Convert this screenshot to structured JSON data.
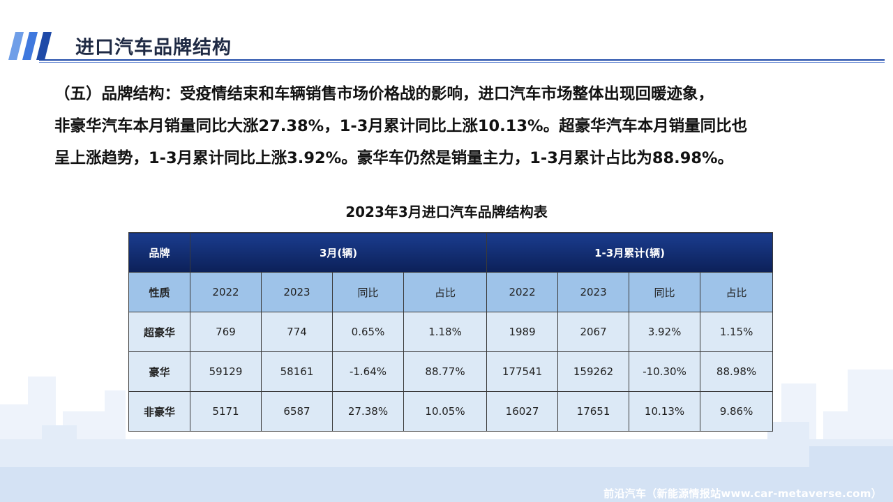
{
  "header": {
    "title": "进口汽车品牌结构"
  },
  "intro": {
    "line1": "（五）品牌结构：受疫情结束和车辆销售市场价格战的影响，进口汽车市场整体出现回暖迹象，",
    "line2": "非豪华汽车本月销量同比大涨27.38%，1-3月累计同比上涨10.13%。超豪华汽车本月销量同比也",
    "line3": "呈上涨趋势，1-3月累计同比上涨3.92%。豪华车仍然是销量主力，1-3月累计占比为88.98%。"
  },
  "table": {
    "title": "2023年3月进口汽车品牌结构表",
    "header_row1": {
      "brand": "品牌",
      "group_month": "3月(辆)",
      "group_ytd": "1-3月累计(辆)"
    },
    "header_row2": {
      "nature": "性质",
      "cols": [
        "2022",
        "2023",
        "同比",
        "占比",
        "2022",
        "2023",
        "同比",
        "占比"
      ]
    },
    "rows": [
      {
        "category": "超豪华",
        "cells": [
          "769",
          "774",
          "0.65%",
          "1.18%",
          "1989",
          "2067",
          "3.92%",
          "1.15%"
        ]
      },
      {
        "category": "豪华",
        "cells": [
          "59129",
          "58161",
          "-1.64%",
          "88.77%",
          "177541",
          "159262",
          "-10.30%",
          "88.98%"
        ]
      },
      {
        "category": "非豪华",
        "cells": [
          "5171",
          "6587",
          "27.38%",
          "10.05%",
          "16027",
          "17651",
          "10.13%",
          "9.86%"
        ]
      }
    ]
  },
  "footer": {
    "credit": "前沿汽车（新能源情报站www.car-metaverse.com）"
  },
  "colors": {
    "accent": "#1f4aa8",
    "header_dark": "#0c2058",
    "header_light": "#9ec3e9",
    "cell_bg": "#dce9f6"
  }
}
